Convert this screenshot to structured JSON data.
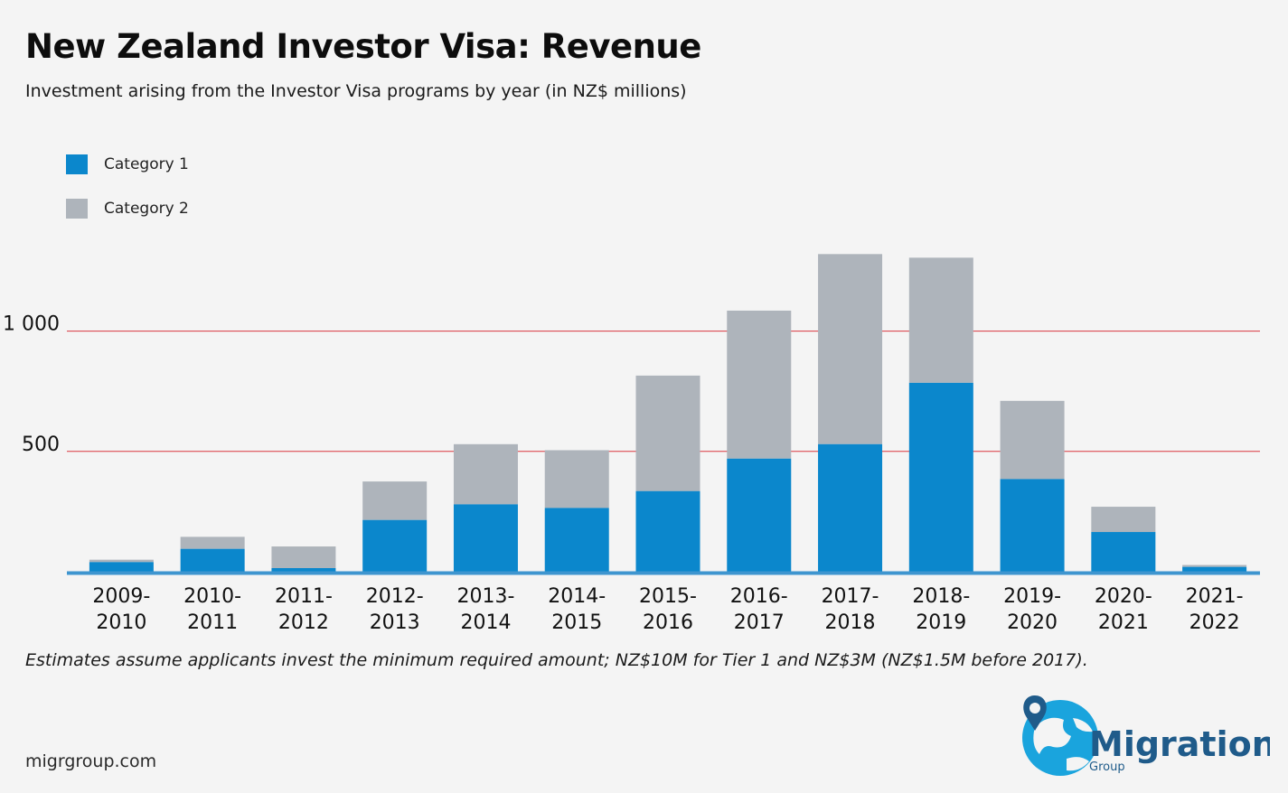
{
  "title": "New Zealand Investor Visa: Revenue",
  "subtitle": "Investment arising from the Investor Visa programs by year (in NZ$ millions)",
  "footnote": "Estimates assume applicants invest the minimum required amount; NZ$10M for Tier 1 and NZ$3M (NZ$1.5M before 2017).",
  "website": "migrgroup.com",
  "logo": {
    "text": "Migration",
    "subtext": "Group",
    "icon": "globe-pin-icon"
  },
  "colors": {
    "category1": "#0b87cc",
    "category2": "#aeb4bb",
    "gridline": "#d9373f",
    "axis": "#3e95cf",
    "logo": "#1aa4dd",
    "logo_text": "#1f5b8a"
  },
  "chart_data": {
    "type": "bar",
    "stacked": true,
    "categories": [
      [
        "2009-",
        "2010"
      ],
      [
        "2010-",
        "2011"
      ],
      [
        "2011-",
        "2012"
      ],
      [
        "2012-",
        "2013"
      ],
      [
        "2013-",
        "2014"
      ],
      [
        "2014-",
        "2015"
      ],
      [
        "2015-",
        "2016"
      ],
      [
        "2016-",
        "2017"
      ],
      [
        "2017-",
        "2018"
      ],
      [
        "2018-",
        "2019"
      ],
      [
        "2019-",
        "2020"
      ],
      [
        "2020-",
        "2021"
      ],
      [
        "2021-",
        "2022"
      ]
    ],
    "series": [
      {
        "name": "Category 1",
        "values": [
          40,
          95,
          15,
          215,
          280,
          265,
          335,
          470,
          530,
          785,
          385,
          165,
          20
        ]
      },
      {
        "name": "Category 2",
        "values": [
          10,
          50,
          90,
          160,
          250,
          240,
          480,
          615,
          790,
          520,
          325,
          105,
          8
        ]
      }
    ],
    "ylim": [
      0,
      1400
    ],
    "yticks": [
      500,
      1000
    ],
    "ytick_labels": [
      "500",
      "1 000"
    ],
    "grid": true,
    "legend": "top-left",
    "xlabel": "",
    "ylabel": ""
  }
}
